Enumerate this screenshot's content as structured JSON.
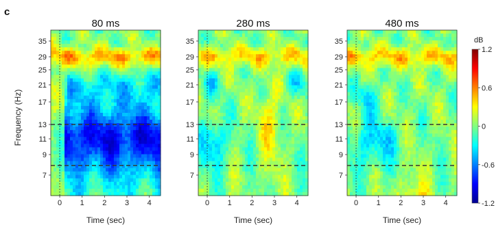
{
  "panel_letter": "c",
  "chart_data": {
    "type": "heatmap",
    "panels": [
      {
        "title": "80 ms"
      },
      {
        "title": "280 ms"
      },
      {
        "title": "480 ms"
      }
    ],
    "xlabel": "Time (sec)",
    "ylabel": "Frequency (Hz)",
    "xlim": [
      -0.4,
      4.5
    ],
    "ylim": [
      3,
      38
    ],
    "x_ticks": [
      0,
      1,
      2,
      3,
      4
    ],
    "y_ticks": [
      7,
      9,
      11,
      13,
      17,
      21,
      25,
      29,
      35
    ],
    "dashed_lines_hz": [
      13,
      8
    ],
    "onset_line_sec": 0,
    "colorbar": {
      "label": "dB",
      "min": -1.2,
      "max": 1.2,
      "ticks": [
        "1.2",
        "0.6",
        "0",
        "-0.6",
        "-1.2"
      ],
      "colormap": [
        "#00008f",
        "#0000ff",
        "#0080ff",
        "#00ffff",
        "#80ff80",
        "#ffff00",
        "#ff8000",
        "#ff0000",
        "#800000"
      ]
    }
  }
}
